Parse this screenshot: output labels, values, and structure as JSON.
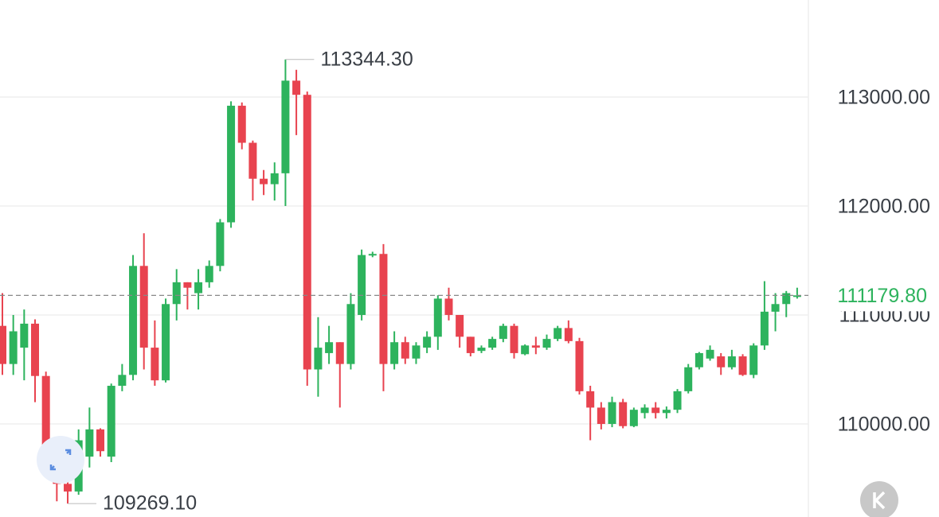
{
  "chart_data": {
    "type": "candlestick",
    "open": [
      110900,
      110550,
      110700,
      110920,
      110440,
      109800,
      109450,
      109380,
      109700,
      109950,
      109700,
      110350,
      110450,
      111450,
      110700,
      110400,
      111100,
      111300,
      111200,
      111300,
      111450,
      111850,
      112920,
      112580,
      112250,
      112200,
      112300,
      113150,
      113020,
      110500,
      110650,
      110750,
      110550,
      111000,
      111550,
      111560,
      110550,
      110750,
      110600,
      110700,
      110800,
      111150,
      111000,
      110800,
      110670,
      110700,
      110780,
      110900,
      110640,
      110720,
      110700,
      110780,
      110880,
      110760,
      110300,
      110150,
      110000,
      110200,
      109980,
      110100,
      110150,
      110100,
      110130,
      110300,
      110520,
      110600,
      110620,
      110520,
      110620,
      110450,
      110720,
      111030,
      111100,
      111170
    ],
    "high": [
      111200,
      111000,
      111050,
      110960,
      110480,
      109850,
      109600,
      109950,
      110150,
      109960,
      110370,
      110550,
      111550,
      111750,
      110950,
      111150,
      111420,
      111300,
      111420,
      111500,
      111880,
      112960,
      112950,
      112600,
      112330,
      112400,
      113344.3,
      113250,
      113050,
      110980,
      110900,
      110750,
      111200,
      111600,
      111580,
      111650,
      110850,
      110800,
      110750,
      110850,
      111180,
      111250,
      111000,
      110800,
      110720,
      110800,
      110920,
      110920,
      110730,
      110800,
      110820,
      110900,
      110950,
      110790,
      110350,
      110200,
      110250,
      110230,
      110150,
      110180,
      110200,
      110160,
      110320,
      110550,
      110660,
      110720,
      110650,
      110680,
      110640,
      110740,
      111310,
      111200,
      111220,
      111250
    ],
    "low": [
      110450,
      110450,
      110400,
      110200,
      109650,
      109290,
      109269.1,
      109350,
      109600,
      109700,
      109650,
      110300,
      110400,
      110500,
      110350,
      110380,
      110950,
      111050,
      111050,
      111250,
      111400,
      111800,
      112520,
      112050,
      112100,
      112050,
      112000,
      112650,
      110350,
      110250,
      110550,
      110150,
      110500,
      110950,
      111530,
      110300,
      110500,
      110550,
      110550,
      110650,
      110680,
      110950,
      110700,
      110620,
      110650,
      110680,
      110750,
      110600,
      110630,
      110640,
      110680,
      110760,
      110740,
      110270,
      109850,
      109950,
      109970,
      109960,
      109970,
      110050,
      110050,
      110050,
      110100,
      110280,
      110500,
      110580,
      110450,
      110500,
      110440,
      110420,
      110680,
      110850,
      110980,
      111150
    ],
    "close": [
      110550,
      110850,
      110920,
      110440,
      109800,
      109450,
      109380,
      109850,
      109950,
      109750,
      110350,
      110450,
      111450,
      110700,
      110400,
      111100,
      111300,
      111250,
      111300,
      111450,
      111850,
      112920,
      112580,
      112250,
      112200,
      112300,
      113150,
      113020,
      110500,
      110700,
      110750,
      110550,
      111100,
      111550,
      111560,
      110550,
      110750,
      110600,
      110720,
      110800,
      111150,
      111000,
      110800,
      110650,
      110700,
      110780,
      110900,
      110650,
      110720,
      110700,
      110780,
      110880,
      110760,
      110300,
      110150,
      110000,
      110200,
      109980,
      110130,
      110150,
      110100,
      110130,
      110300,
      110520,
      110650,
      110680,
      110520,
      110620,
      110450,
      110720,
      111030,
      111100,
      111200,
      111179.8
    ],
    "up_color": "#2db35d",
    "down_color": "#e8434f",
    "ylim": [
      109146,
      113890
    ],
    "yticks": [
      {
        "value": 110000,
        "label": "110000.00"
      },
      {
        "value": 111000,
        "label": "111000.00"
      },
      {
        "value": 112000,
        "label": "112000.00"
      },
      {
        "value": 113000,
        "label": "113000.00"
      }
    ],
    "grid": true,
    "last_price": {
      "value": 111179.8,
      "label": "111179.80"
    },
    "max_label": {
      "value": 113344.3,
      "label": "113344.30"
    },
    "min_label": {
      "value": 109269.1,
      "label": "109269.10"
    }
  }
}
